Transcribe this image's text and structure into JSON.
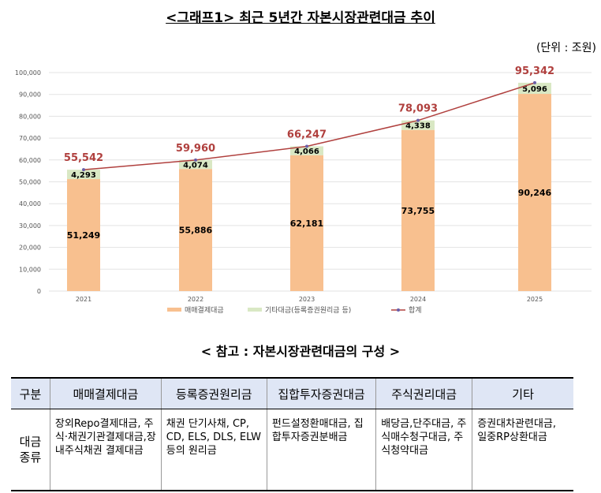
{
  "title": "<그래프1> 최근 5년간 자본시장관련대금 추이",
  "unit": "(단위 : 조원)",
  "chart_data": {
    "type": "bar",
    "stacked": true,
    "categories": [
      "2021",
      "2022",
      "2023",
      "2024",
      "2025"
    ],
    "series": [
      {
        "name": "매매결제대금",
        "values": [
          51249,
          55886,
          62181,
          73755,
          90246
        ],
        "color": "#f8c08f",
        "labels": [
          "51,249",
          "55,886",
          "62,181",
          "73,755",
          "90,246"
        ]
      },
      {
        "name": "기타대금(등록증권원리금 등)",
        "values": [
          4293,
          4074,
          4066,
          4338,
          5096
        ],
        "color": "#d9e8c4",
        "labels": [
          "4,293",
          "4,074",
          "4,066",
          "4,338",
          "5,096"
        ]
      },
      {
        "name": "합계",
        "type": "line",
        "values": [
          55542,
          59960,
          66247,
          78093,
          95342
        ],
        "color": "#b0403e",
        "labels": [
          "55,542",
          "59,960",
          "66,247",
          "78,093",
          "95,342"
        ]
      }
    ],
    "ylim": [
      0,
      100000
    ],
    "yticks": [
      "0",
      "10,000",
      "20,000",
      "30,000",
      "40,000",
      "50,000",
      "60,000",
      "70,000",
      "80,000",
      "90,000",
      "100,000"
    ],
    "grid": true,
    "legend": "bottom"
  },
  "reference_title": "< 참고 : 자본시장관련대금의 구성 >",
  "table": {
    "headers": [
      "구분",
      "매매결제대금",
      "등록증권원리금",
      "집합투자증권대금",
      "주식권리대금",
      "기타"
    ],
    "row_label": "대금\n종류",
    "cells": [
      "장외Repo결제대금, 주식·채권기관결제대금,장내주식채권 결제대금",
      "채권 단기사채, CP, CD, ELS, DLS, ELW 등의 원리금",
      "펀드설정환매대금, 집합투자증권분배금",
      "배당금,단주대금, 주식매수청구대금, 주식청약대금",
      "증권대차관련대금, 일중RP상환대금"
    ]
  }
}
